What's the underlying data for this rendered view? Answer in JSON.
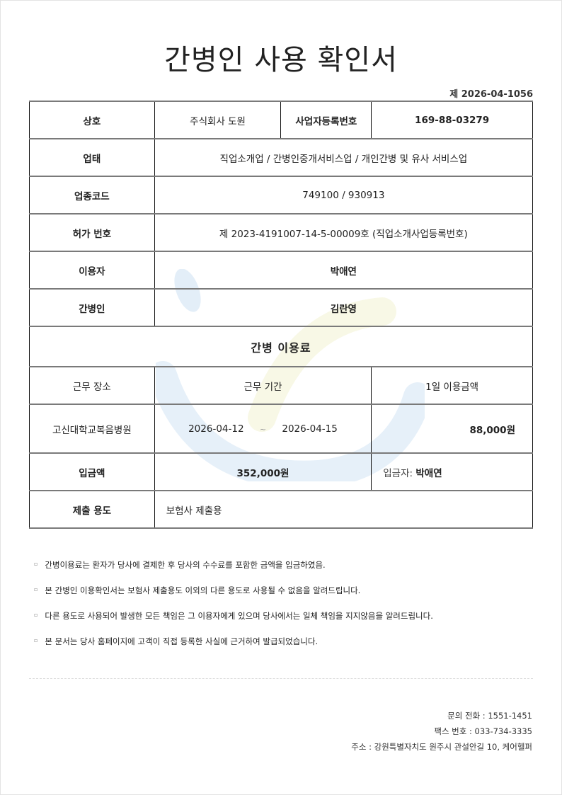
{
  "title": "간병인 사용 확인서",
  "doc_number": "제 2026-04-1056",
  "info": {
    "company_label": "상호",
    "company": "주식회사 도원",
    "bizno_label": "사업자등록번호",
    "bizno": "169-88-03279",
    "business_type_label": "업태",
    "business_type": "직업소개업 / 간병인중개서비스업 / 개인간병 및 유사 서비스업",
    "industry_code_label": "업종코드",
    "industry_code": "749100 / 930913",
    "license_label": "허가 번호",
    "license": "제 2023-4191007-14-5-00009호 (직업소개사업등록번호)",
    "user_label": "이용자",
    "user": "박애연",
    "caregiver_label": "간병인",
    "caregiver": "김란영"
  },
  "fee": {
    "section_title": "간병 이용료",
    "workplace_label": "근무 장소",
    "period_label": "근무 기간",
    "daily_label": "1일 이용금액",
    "workplace": "고신대학교복음병원",
    "start": "2026-04-12",
    "tilde": "~",
    "end": "2026-04-15",
    "daily": "88,000원",
    "deposit_label": "입금액",
    "deposit": "352,000원",
    "depositor_label": "입금자:",
    "depositor": "박애연",
    "purpose_label": "제출 용도",
    "purpose": "보험사 제출용"
  },
  "notes": [
    "간병이용료는 환자가 당사에 결제한 후 당사의 수수료를 포함한 금액을 입금하였음.",
    "본 간병인 이용확인서는 보험사 제출용도 이외의 다른 용도로 사용될 수 없음을 알려드립니다.",
    "다른 용도로 사용되어 발생한 모든 책임은 그 이용자에게 있으며 당사에서는 일체 책임을 지지않음을 알려드립니다.",
    "본 문서는 당사 홈페이지에 고객이 직접 등록한 사실에 근거하여 발급되었습니다."
  ],
  "footer": {
    "phone": "문의 전화 : 1551-1451",
    "fax": "팩스 번호 : 033-734-3335",
    "address": "주소 : 강원특별자치도 원주시 관설안길 10, 케어헬퍼"
  },
  "colors": {
    "watermark_blue": "#dbe9f5",
    "watermark_yellow": "#f7f6dc"
  }
}
